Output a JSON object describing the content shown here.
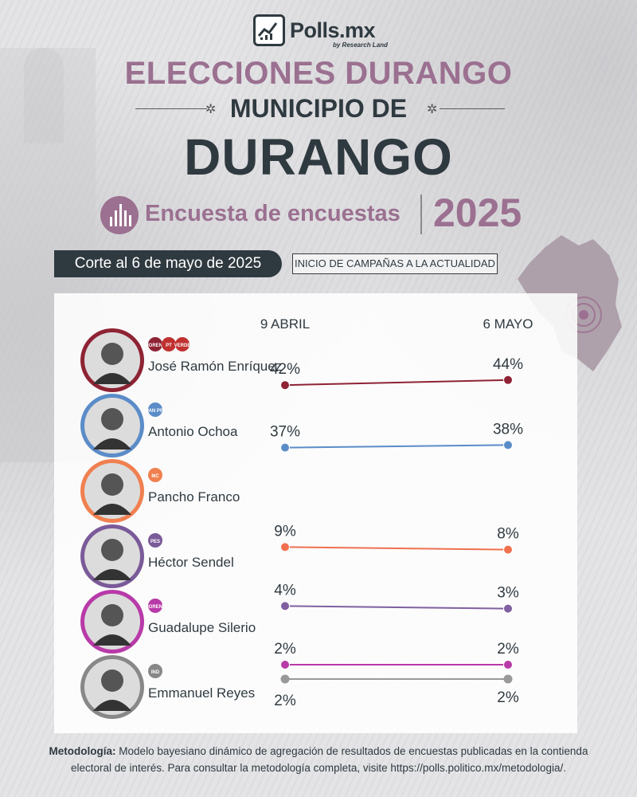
{
  "brand": {
    "name": "Polls.mx",
    "sub": "by Research Land"
  },
  "header": {
    "title": "ELECCIONES DURANGO",
    "subtitle": "MUNICIPIO DE",
    "municipality": "DURANGO",
    "survey_label": "Encuesta de encuestas",
    "year": "2025",
    "cutoff": "Corte al 6 de mayo de 2025",
    "range": "INICIO DE CAMPAÑAS A LA ACTUALIDAD"
  },
  "colors": {
    "accent": "#9b7090",
    "dark": "#2f3a40"
  },
  "chart_data": {
    "type": "line",
    "title": "Encuesta de encuestas",
    "x": [
      "9 ABRIL",
      "6 MAYO"
    ],
    "series": [
      {
        "name": "José Ramón Enríquez",
        "parties": [
          "MORENA",
          "PT",
          "VERDE"
        ],
        "values": [
          42,
          44
        ],
        "labels": [
          "42%",
          "44%"
        ],
        "color": "#8e2334"
      },
      {
        "name": "Antonio Ochoa",
        "parties": [
          "PAN",
          "PRI"
        ],
        "values": [
          37,
          38
        ],
        "labels": [
          "37%",
          "38%"
        ],
        "color": "#5b8cc8"
      },
      {
        "name": "Pancho Franco",
        "parties": [
          "MC"
        ],
        "values": [
          null,
          null
        ],
        "labels": [
          "",
          ""
        ],
        "color": "#f08050"
      },
      {
        "name": "Héctor Sendel",
        "parties": [
          "PES"
        ],
        "values": [
          9,
          8
        ],
        "labels": [
          "9%",
          "8%"
        ],
        "color": "#f07050"
      },
      {
        "name": "Guadalupe Silerio",
        "parties": [
          "MORENA"
        ],
        "values": [
          4,
          3
        ],
        "labels": [
          "4%",
          "3%"
        ],
        "color": "#8060a0"
      },
      {
        "name": "Emmanuel Reyes",
        "parties": [
          "IND"
        ],
        "values": [
          2,
          2
        ],
        "labels": [
          "2%",
          "2%"
        ],
        "color": "#b83aa8"
      }
    ],
    "extra_series": [
      {
        "name": "Emmanuel Reyes",
        "values": [
          2,
          2
        ],
        "labels": [
          "2%",
          "2%"
        ],
        "color": "#999999"
      }
    ]
  },
  "candidates": [
    {
      "name": "José Ramón Enríquez",
      "photo_color": "#8e2334",
      "badges": [
        "MORENA",
        "PT",
        "VERDE"
      ]
    },
    {
      "name": "Antonio Ochoa",
      "photo_color": "#5b8cc8",
      "badges": [
        "PAN PRI"
      ]
    },
    {
      "name": "Pancho Franco",
      "photo_color": "#f08050",
      "badges": [
        "MC"
      ]
    },
    {
      "name": "Héctor Sendel",
      "photo_color": "#7a5a98",
      "badges": [
        "PES"
      ]
    },
    {
      "name": "Guadalupe Silerio",
      "photo_color": "#b83aa8",
      "badges": [
        "MORENA"
      ]
    },
    {
      "name": "Emmanuel Reyes",
      "photo_color": "#888888",
      "badges": [
        "IND"
      ]
    }
  ],
  "footer": {
    "label": "Metodología:",
    "text": "Modelo bayesiano dinámico de agregación de resultados de encuestas publicadas en la contienda electoral de interés. Para consultar la metodología completa, visite https://polls.politico.mx/metodologia/."
  }
}
